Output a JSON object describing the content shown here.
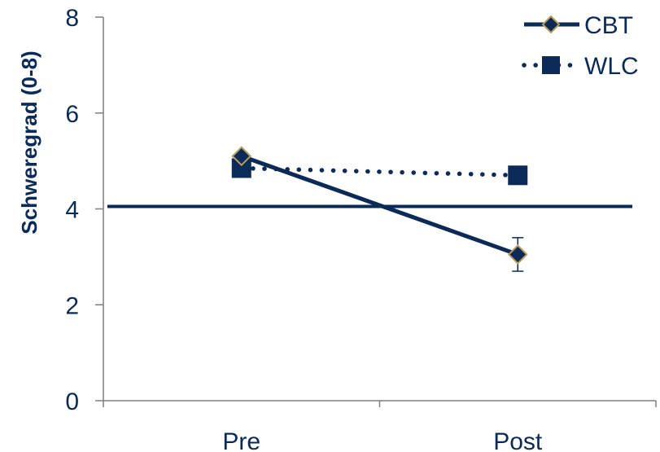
{
  "chart_data": {
    "type": "line",
    "title": "",
    "xlabel": "",
    "ylabel": "Schweregrad (0-8)",
    "categories": [
      "Pre",
      "Post"
    ],
    "ylim": [
      0,
      8
    ],
    "yticks": [
      0,
      2,
      4,
      6,
      8
    ],
    "grid": false,
    "legend_position": "top-right",
    "reference_line": 4.05,
    "series": [
      {
        "name": "CBT",
        "values": [
          5.1,
          3.05
        ],
        "marker": "diamond",
        "line_style": "solid",
        "error": [
          null,
          0.35
        ]
      },
      {
        "name": "WLC",
        "values": [
          4.85,
          4.7
        ],
        "marker": "square",
        "line_style": "dotted",
        "error": [
          null,
          null
        ]
      }
    ],
    "colors": {
      "line": "#0b2a55",
      "marker_edge": "#b89b5e",
      "axis": "#7f7f7f"
    }
  }
}
